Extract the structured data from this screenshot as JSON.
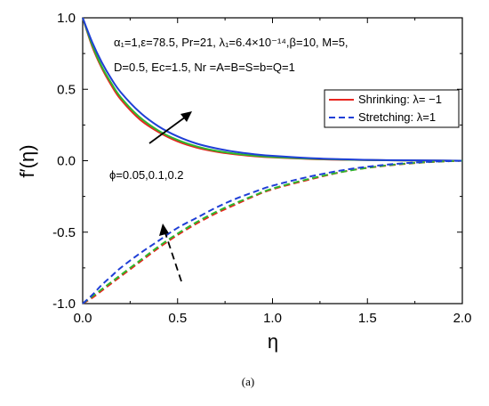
{
  "chart_data": {
    "type": "line",
    "xlabel": "η",
    "ylabel": "f′(η)",
    "xlim": [
      0.0,
      2.0
    ],
    "ylim": [
      -1.0,
      1.0
    ],
    "xticks": [
      "0.0",
      "0.5",
      "1.0",
      "1.5",
      "2.0"
    ],
    "yticks": [
      "-1.0",
      "-0.5",
      "0.0",
      "0.5",
      "1.0"
    ],
    "legend": {
      "placement": "top-right",
      "entries": [
        {
          "label": "Shrinking: λ= −1",
          "color": "#e8251f",
          "dash": "solid"
        },
        {
          "label": "Stretching: λ=1",
          "color": "#1f3fd6",
          "dash": "dashed"
        }
      ]
    },
    "annotations": {
      "params_line1": "α₁=1,ε=78.5, Pr=21, λ₁=6.4×10⁻¹⁴,β=10, M=5,",
      "params_line2": "D=0.5, Ec=1.5, Nr =A=B=S=b=Q=1",
      "phi_label": "ϕ=0.05,0.1,0.2"
    },
    "caption": "(a)",
    "x": [
      0.0,
      0.05,
      0.1,
      0.15,
      0.2,
      0.3,
      0.4,
      0.5,
      0.6,
      0.7,
      0.8,
      0.9,
      1.0,
      1.2,
      1.4,
      1.6,
      1.8,
      2.0
    ],
    "series": [
      {
        "group": "shrinking",
        "phi": 0.05,
        "color": "#e8251f",
        "dash": "solid",
        "values": [
          1.0,
          0.8,
          0.65,
          0.53,
          0.43,
          0.29,
          0.2,
          0.135,
          0.092,
          0.064,
          0.045,
          0.032,
          0.023,
          0.012,
          0.006,
          0.003,
          0.001,
          0.0
        ]
      },
      {
        "group": "shrinking",
        "phi": 0.1,
        "color": "#2db82d",
        "dash": "solid",
        "values": [
          1.0,
          0.81,
          0.66,
          0.545,
          0.445,
          0.305,
          0.21,
          0.145,
          0.1,
          0.07,
          0.05,
          0.036,
          0.026,
          0.014,
          0.007,
          0.003,
          0.001,
          0.0
        ]
      },
      {
        "group": "shrinking",
        "phi": 0.2,
        "color": "#1f3fd6",
        "dash": "solid",
        "values": [
          1.0,
          0.83,
          0.69,
          0.575,
          0.48,
          0.34,
          0.24,
          0.17,
          0.12,
          0.087,
          0.063,
          0.046,
          0.034,
          0.018,
          0.009,
          0.004,
          0.002,
          0.0
        ]
      },
      {
        "group": "stretching",
        "phi": 0.05,
        "color": "#e8251f",
        "dash": "dashed",
        "values": [
          -1.0,
          -0.96,
          -0.91,
          -0.86,
          -0.81,
          -0.71,
          -0.61,
          -0.52,
          -0.44,
          -0.37,
          -0.31,
          -0.25,
          -0.2,
          -0.13,
          -0.07,
          -0.035,
          -0.012,
          0.0
        ]
      },
      {
        "group": "stretching",
        "phi": 0.1,
        "color": "#2db82d",
        "dash": "dashed",
        "values": [
          -1.0,
          -0.95,
          -0.9,
          -0.85,
          -0.8,
          -0.7,
          -0.6,
          -0.51,
          -0.43,
          -0.36,
          -0.3,
          -0.245,
          -0.195,
          -0.125,
          -0.07,
          -0.033,
          -0.011,
          0.0
        ]
      },
      {
        "group": "stretching",
        "phi": 0.2,
        "color": "#1f3fd6",
        "dash": "dashed",
        "values": [
          -1.0,
          -0.94,
          -0.87,
          -0.81,
          -0.75,
          -0.65,
          -0.56,
          -0.47,
          -0.4,
          -0.33,
          -0.27,
          -0.22,
          -0.175,
          -0.11,
          -0.06,
          -0.028,
          -0.009,
          0.0
        ]
      }
    ]
  }
}
